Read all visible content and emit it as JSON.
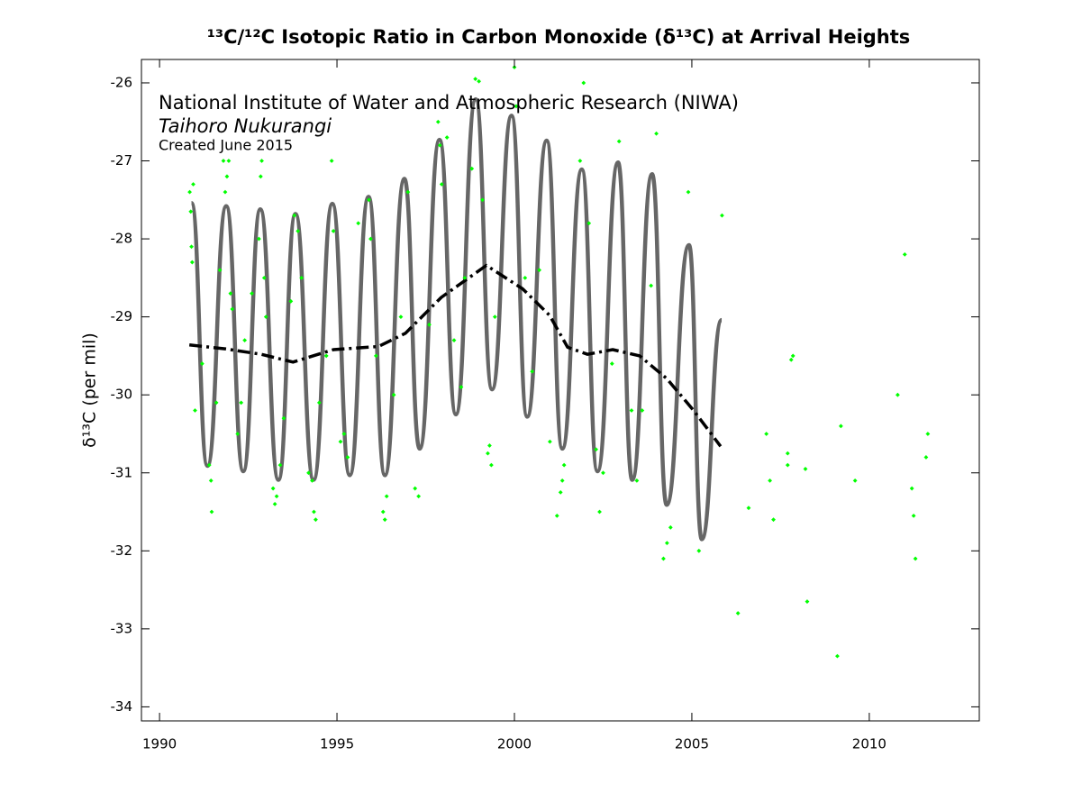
{
  "chart_data": {
    "type": "line",
    "title": "¹³C/¹²C Isotopic Ratio in Carbon Monoxide (δ¹³C) at Arrival Heights",
    "annotations": [
      "National Institute of Water and Atmospheric Research (NIWA)",
      "Taihoro Nukurangi",
      "Created June 2015"
    ],
    "y_label": "δ¹³C (per mil)",
    "xlim": [
      1989.49,
      2013.1
    ],
    "xticks": [
      1990,
      1995,
      2000,
      2005,
      2010
    ],
    "ylim": [
      -34.18,
      -25.7
    ],
    "yticks": [
      -34,
      -33,
      -32,
      -31,
      -30,
      -29,
      -28,
      -27,
      -26
    ],
    "grid": false,
    "series": [
      {
        "type": "line",
        "style": "smooth",
        "color": "#666666",
        "x": [
          1990.9,
          1991.35,
          1991.88,
          1992.36,
          1992.84,
          1993.35,
          1993.83,
          1994.34,
          1994.87,
          1995.36,
          1995.89,
          1996.35,
          1996.9,
          1997.33,
          1997.89,
          1998.35,
          1998.91,
          1999.37,
          1999.92,
          2000.36,
          2000.91,
          2001.35,
          2001.9,
          2002.34,
          2002.92,
          2003.32,
          2003.88,
          2004.29,
          2004.92,
          2005.28,
          2005.84
        ],
        "values": [
          -27.54,
          -30.91,
          -27.58,
          -30.98,
          -27.62,
          -31.09,
          -27.68,
          -31.09,
          -27.55,
          -31.03,
          -27.46,
          -31.03,
          -27.23,
          -30.69,
          -26.73,
          -30.25,
          -26.21,
          -29.93,
          -26.42,
          -30.28,
          -26.74,
          -30.69,
          -27.11,
          -30.98,
          -27.02,
          -31.09,
          -27.17,
          -31.41,
          -28.08,
          -31.85,
          -29.04
        ]
      },
      {
        "type": "line",
        "style": "dash-dot",
        "color": "#000000",
        "x": [
          1990.84,
          1991.85,
          1992.87,
          1993.76,
          1994.9,
          1996.17,
          1996.93,
          1997.94,
          1999.21,
          2000.23,
          2000.99,
          2001.5,
          2002.06,
          2002.77,
          2003.53,
          2004.29,
          2005.05,
          2005.81
        ],
        "values": [
          -29.36,
          -29.41,
          -29.48,
          -29.58,
          -29.42,
          -29.38,
          -29.21,
          -28.75,
          -28.34,
          -28.64,
          -28.98,
          -29.39,
          -29.48,
          -29.42,
          -29.5,
          -29.79,
          -30.2,
          -30.66
        ]
      },
      {
        "type": "scatter",
        "color": "#00ff00",
        "x": [
          1990.85,
          1990.88,
          1990.9,
          1990.92,
          1990.95,
          1991.0,
          1991.2,
          1991.4,
          1991.45,
          1991.47,
          1991.6,
          1991.7,
          1991.8,
          1991.85,
          1991.9,
          1991.95,
          1992.0,
          1992.05,
          1992.2,
          1992.3,
          1992.4,
          1992.6,
          1992.8,
          1992.85,
          1992.88,
          1992.95,
          1993.0,
          1993.2,
          1993.25,
          1993.3,
          1993.4,
          1993.5,
          1993.7,
          1993.8,
          1993.9,
          1994.0,
          1994.2,
          1994.3,
          1994.35,
          1994.4,
          1994.5,
          1994.7,
          1994.85,
          1994.9,
          1995.1,
          1995.2,
          1995.3,
          1995.6,
          1995.9,
          1995.95,
          1996.1,
          1996.3,
          1996.35,
          1996.4,
          1996.6,
          1996.8,
          1997.0,
          1997.2,
          1997.3,
          1997.6,
          1997.85,
          1997.9,
          1997.95,
          1998.1,
          1998.3,
          1998.5,
          1998.6,
          1998.8,
          1998.9,
          1999.0,
          1999.1,
          1999.25,
          1999.3,
          1999.35,
          1999.45,
          2000.0,
          2000.05,
          2000.3,
          2000.5,
          2000.7,
          2001.0,
          2001.2,
          2001.3,
          2001.35,
          2001.4,
          2001.85,
          2001.95,
          2002.1,
          2002.3,
          2002.4,
          2002.5,
          2002.75,
          2002.95,
          2003.3,
          2003.45,
          2003.6,
          2003.85,
          2004.0,
          2004.2,
          2004.3,
          2004.4,
          2004.9,
          2005.2,
          2005.85,
          2006.3,
          2006.6,
          2007.1,
          2007.2,
          2007.3,
          2007.7,
          2007.7,
          2007.8,
          2007.85,
          2008.2,
          2008.25,
          2009.1,
          2009.2,
          2009.6,
          2010.8,
          2011.0,
          2011.2,
          2011.25,
          2011.3,
          2011.6,
          2011.65
        ],
        "values": [
          -27.4,
          -27.65,
          -28.1,
          -28.3,
          -27.3,
          -30.2,
          -29.6,
          -30.9,
          -31.1,
          -31.5,
          -30.1,
          -28.4,
          -27.0,
          -27.4,
          -27.2,
          -27.0,
          -28.7,
          -28.9,
          -30.5,
          -30.1,
          -29.3,
          -28.7,
          -28.0,
          -27.2,
          -27.0,
          -28.5,
          -29.0,
          -31.2,
          -31.4,
          -31.3,
          -30.9,
          -30.3,
          -28.8,
          -27.7,
          -27.9,
          -28.5,
          -31.0,
          -31.1,
          -31.5,
          -31.6,
          -30.1,
          -29.5,
          -27.0,
          -27.9,
          -30.6,
          -30.5,
          -30.8,
          -27.8,
          -27.5,
          -28.0,
          -29.5,
          -31.5,
          -31.6,
          -31.3,
          -30.0,
          -29.0,
          -27.4,
          -31.2,
          -31.3,
          -29.1,
          -26.5,
          -26.8,
          -27.3,
          -26.7,
          -29.3,
          -29.9,
          -28.5,
          -27.1,
          -25.95,
          -25.98,
          -27.5,
          -30.75,
          -30.65,
          -30.9,
          -29.0,
          -25.8,
          -26.3,
          -28.5,
          -29.7,
          -28.4,
          -30.6,
          -31.55,
          -31.25,
          -31.1,
          -30.9,
          -27.0,
          -26.0,
          -27.8,
          -30.7,
          -31.5,
          -31.0,
          -29.6,
          -26.75,
          -30.2,
          -31.1,
          -30.2,
          -28.6,
          -26.65,
          -32.1,
          -31.9,
          -31.7,
          -27.4,
          -32.0,
          -27.7,
          -32.8,
          -31.45,
          -30.5,
          -31.1,
          -31.6,
          -30.9,
          -30.75,
          -29.55,
          -29.5,
          -30.95,
          -32.65,
          -33.35,
          -30.4,
          -31.1,
          -30.0,
          -28.2,
          -31.2,
          -31.55,
          -32.1,
          -30.8,
          -30.5
        ]
      }
    ]
  }
}
